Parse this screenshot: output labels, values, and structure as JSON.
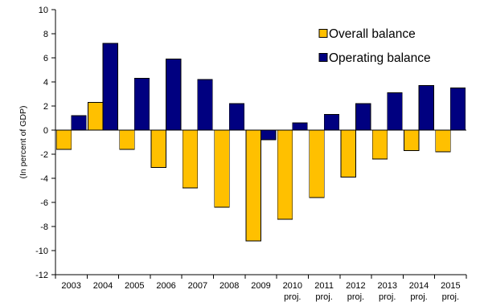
{
  "chart_data": {
    "type": "bar",
    "title": "",
    "xlabel": "",
    "ylabel": "(In percent of GDP)",
    "ylim": [
      -12,
      10
    ],
    "ytick_step": 2,
    "grid": false,
    "legend_position": "top-right",
    "categories": [
      {
        "year": "2003",
        "sub": ""
      },
      {
        "year": "2004",
        "sub": ""
      },
      {
        "year": "2005",
        "sub": ""
      },
      {
        "year": "2006",
        "sub": ""
      },
      {
        "year": "2007",
        "sub": ""
      },
      {
        "year": "2008",
        "sub": ""
      },
      {
        "year": "2009",
        "sub": ""
      },
      {
        "year": "2010",
        "sub": "proj."
      },
      {
        "year": "2011",
        "sub": "proj."
      },
      {
        "year": "2012",
        "sub": "proj."
      },
      {
        "year": "2013",
        "sub": "proj."
      },
      {
        "year": "2014",
        "sub": "proj."
      },
      {
        "year": "2015",
        "sub": "proj."
      }
    ],
    "series": [
      {
        "name": "Overall balance",
        "color": "#FFC000",
        "values": [
          -1.6,
          2.3,
          -1.6,
          -3.1,
          -4.8,
          -6.4,
          -9.2,
          -7.4,
          -5.6,
          -3.9,
          -2.4,
          -1.7,
          -1.8
        ]
      },
      {
        "name": "Operating balance",
        "color": "#000080",
        "values": [
          1.2,
          7.2,
          4.3,
          5.9,
          4.2,
          2.2,
          -0.8,
          0.6,
          1.3,
          2.2,
          3.1,
          3.7,
          3.5
        ]
      }
    ]
  }
}
